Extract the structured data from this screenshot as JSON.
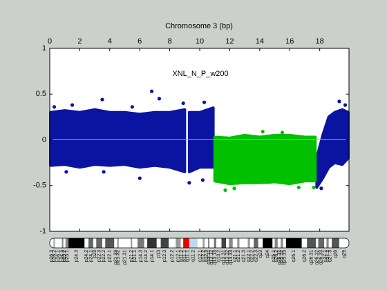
{
  "chart_data": {
    "type": "scatter",
    "title": "XNL_N_P_w200",
    "x_label": "Chromosome 3 (bp)",
    "xlim": [
      0,
      19.95
    ],
    "xticks": [
      0,
      2,
      4,
      6,
      8,
      10,
      12,
      14,
      16,
      18
    ],
    "ylim": [
      -1,
      1
    ],
    "yticks": [
      -1,
      -0.5,
      0,
      0.5,
      1
    ],
    "refline": 0,
    "refline_color": "#aaaaaa",
    "series": [
      {
        "color": "#0a14a0",
        "x": [
          0.05,
          1,
          2,
          3,
          4,
          5,
          6,
          7,
          8,
          9.0,
          9.15,
          9.3,
          10,
          10.9,
          14,
          17.8,
          18.2,
          18.6,
          19,
          19.5,
          19.9
        ],
        "low": [
          -0.28,
          -0.27,
          -0.3,
          -0.27,
          -0.28,
          -0.27,
          -0.3,
          -0.28,
          -0.3,
          -0.35,
          null,
          -0.35,
          -0.3,
          -0.3,
          null,
          -0.52,
          -0.42,
          -0.3,
          -0.25,
          -0.27,
          -0.2
        ],
        "high": [
          0.3,
          0.32,
          0.3,
          0.33,
          0.3,
          0.3,
          0.28,
          0.3,
          0.3,
          0.33,
          null,
          0.3,
          0.3,
          0.35,
          null,
          -0.2,
          0.05,
          0.25,
          0.3,
          0.33,
          0.3
        ],
        "px": [
          0.3,
          1.5,
          3.5,
          5.5,
          6.8,
          7.3,
          8.9,
          10.3,
          1.1,
          3.6,
          6.0,
          9.3,
          10.2,
          18.1,
          19.3,
          19.7
        ],
        "py": [
          0.36,
          0.38,
          0.44,
          0.36,
          0.53,
          0.45,
          0.4,
          0.41,
          -0.35,
          -0.35,
          -0.42,
          -0.47,
          -0.44,
          -0.53,
          0.42,
          0.38
        ]
      },
      {
        "color": "#00c000",
        "x": [
          11,
          12,
          13,
          14,
          15,
          16,
          17,
          17.7
        ],
        "low": [
          -0.45,
          -0.48,
          -0.47,
          -0.47,
          -0.46,
          -0.48,
          -0.45,
          -0.45
        ],
        "high": [
          0.03,
          0.02,
          0.05,
          0.03,
          0.05,
          0.05,
          0.03,
          0.03
        ],
        "px": [
          11.7,
          12.3,
          14.2,
          15.5,
          16.6,
          17.6
        ],
        "py": [
          -0.55,
          -0.53,
          0.09,
          0.08,
          -0.52,
          -0.52
        ]
      }
    ],
    "bands": [
      {
        "name": "p26.3",
        "start": 0,
        "end": 0.24,
        "color": "#ffffff"
      },
      {
        "name": "p26.2",
        "start": 0.24,
        "end": 0.37,
        "color": "#bbbbbb"
      },
      {
        "name": "p26.1",
        "start": 0.37,
        "end": 0.81,
        "color": "#ffffff"
      },
      {
        "name": "p25.3",
        "start": 0.81,
        "end": 0.91,
        "color": "#888888"
      },
      {
        "name": "p25.2",
        "start": 0.91,
        "end": 1.05,
        "color": "#ffffff"
      },
      {
        "name": "p25.1",
        "start": 1.05,
        "end": 1.25,
        "color": "#888888"
      },
      {
        "name": "p24.3",
        "start": 1.25,
        "end": 2.32,
        "color": "#000000"
      },
      {
        "name": "p24.2",
        "start": 2.32,
        "end": 2.58,
        "color": "#ffffff"
      },
      {
        "name": "p24.1",
        "start": 2.58,
        "end": 2.9,
        "color": "#666666"
      },
      {
        "name": "p23",
        "start": 2.9,
        "end": 3.1,
        "color": "#ffffff"
      },
      {
        "name": "p22.3",
        "start": 3.1,
        "end": 3.5,
        "color": "#666666"
      },
      {
        "name": "p22.2",
        "start": 3.5,
        "end": 3.7,
        "color": "#ffffff"
      },
      {
        "name": "p22.1",
        "start": 3.7,
        "end": 4.3,
        "color": "#555555"
      },
      {
        "name": "p21.33",
        "start": 4.3,
        "end": 4.5,
        "color": "#ffffff"
      },
      {
        "name": "p21.32",
        "start": 4.5,
        "end": 4.6,
        "color": "#999999"
      },
      {
        "name": "p21.31",
        "start": 4.6,
        "end": 5.4,
        "color": "#ffffff"
      },
      {
        "name": "p21.2",
        "start": 5.4,
        "end": 5.5,
        "color": "#999999"
      },
      {
        "name": "p21.1",
        "start": 5.5,
        "end": 5.85,
        "color": "#ffffff"
      },
      {
        "name": "p14.3",
        "start": 5.85,
        "end": 6.3,
        "color": "#777777"
      },
      {
        "name": "p14.2",
        "start": 6.3,
        "end": 6.5,
        "color": "#ffffff"
      },
      {
        "name": "p14.1",
        "start": 6.5,
        "end": 7.13,
        "color": "#333333"
      },
      {
        "name": "p13",
        "start": 7.13,
        "end": 7.4,
        "color": "#ffffff"
      },
      {
        "name": "p12.3",
        "start": 7.4,
        "end": 7.93,
        "color": "#444444"
      },
      {
        "name": "p12.2",
        "start": 7.93,
        "end": 8.4,
        "color": "#ffffff"
      },
      {
        "name": "p12.1",
        "start": 8.4,
        "end": 8.73,
        "color": "#999999"
      },
      {
        "name": "p11.2",
        "start": 8.73,
        "end": 8.9,
        "color": "#ffffff"
      },
      {
        "name": "p11.1",
        "start": 8.9,
        "end": 9.1,
        "color": "#ee0000"
      },
      {
        "name": "q11.1",
        "start": 9.1,
        "end": 9.3,
        "color": "#ee0000"
      },
      {
        "name": "q11.2",
        "start": 9.3,
        "end": 9.85,
        "color": "#bfd8f0"
      },
      {
        "name": "q12.1",
        "start": 9.85,
        "end": 10.2,
        "color": "#ffffff"
      },
      {
        "name": "q12.2",
        "start": 10.2,
        "end": 10.32,
        "color": "#999999"
      },
      {
        "name": "q12.3",
        "start": 10.32,
        "end": 10.55,
        "color": "#ffffff"
      },
      {
        "name": "q13.11",
        "start": 10.55,
        "end": 10.65,
        "color": "#888888"
      },
      {
        "name": "q13.12",
        "start": 10.65,
        "end": 10.95,
        "color": "#ffffff"
      },
      {
        "name": "q13.13",
        "start": 10.95,
        "end": 11.1,
        "color": "#777777"
      },
      {
        "name": "q13.2",
        "start": 11.1,
        "end": 11.45,
        "color": "#ffffff"
      },
      {
        "name": "q13.31",
        "start": 11.45,
        "end": 11.75,
        "color": "#444444"
      },
      {
        "name": "q13.32",
        "start": 11.75,
        "end": 11.95,
        "color": "#ffffff"
      },
      {
        "name": "q13.33",
        "start": 11.95,
        "end": 12.2,
        "color": "#888888"
      },
      {
        "name": "q21.1",
        "start": 12.2,
        "end": 12.5,
        "color": "#ffffff"
      },
      {
        "name": "q21.2",
        "start": 12.5,
        "end": 12.65,
        "color": "#999999"
      },
      {
        "name": "q21.3",
        "start": 12.65,
        "end": 13.2,
        "color": "#ffffff"
      },
      {
        "name": "q22.1",
        "start": 13.2,
        "end": 13.35,
        "color": "#999999"
      },
      {
        "name": "q22.2",
        "start": 13.35,
        "end": 13.6,
        "color": "#ffffff"
      },
      {
        "name": "q22.3",
        "start": 13.6,
        "end": 13.9,
        "color": "#666666"
      },
      {
        "name": "q23",
        "start": 13.9,
        "end": 14.2,
        "color": "#ffffff"
      },
      {
        "name": "q24",
        "start": 14.2,
        "end": 14.85,
        "color": "#000000"
      },
      {
        "name": "q25.1",
        "start": 14.85,
        "end": 15.0,
        "color": "#ffffff"
      },
      {
        "name": "q25.2",
        "start": 15.0,
        "end": 15.2,
        "color": "#888888"
      },
      {
        "name": "q25.31",
        "start": 15.2,
        "end": 15.4,
        "color": "#ffffff"
      },
      {
        "name": "q25.32",
        "start": 15.4,
        "end": 15.55,
        "color": "#888888"
      },
      {
        "name": "q25.33",
        "start": 15.55,
        "end": 15.75,
        "color": "#ffffff"
      },
      {
        "name": "q26.1",
        "start": 15.75,
        "end": 16.8,
        "color": "#000000"
      },
      {
        "name": "q26.2",
        "start": 16.8,
        "end": 17.15,
        "color": "#ffffff"
      },
      {
        "name": "q26.31",
        "start": 17.15,
        "end": 17.75,
        "color": "#555555"
      },
      {
        "name": "q26.32",
        "start": 17.75,
        "end": 17.9,
        "color": "#ffffff"
      },
      {
        "name": "q26.33",
        "start": 17.9,
        "end": 18.3,
        "color": "#666666"
      },
      {
        "name": "q27.1",
        "start": 18.3,
        "end": 18.45,
        "color": "#ffffff"
      },
      {
        "name": "q27.2",
        "start": 18.45,
        "end": 18.6,
        "color": "#888888"
      },
      {
        "name": "q27.3",
        "start": 18.6,
        "end": 18.8,
        "color": "#ffffff"
      },
      {
        "name": "q28",
        "start": 18.8,
        "end": 19.3,
        "color": "#555555"
      },
      {
        "name": "q29",
        "start": 19.3,
        "end": 19.95,
        "color": "#ffffff"
      }
    ]
  }
}
